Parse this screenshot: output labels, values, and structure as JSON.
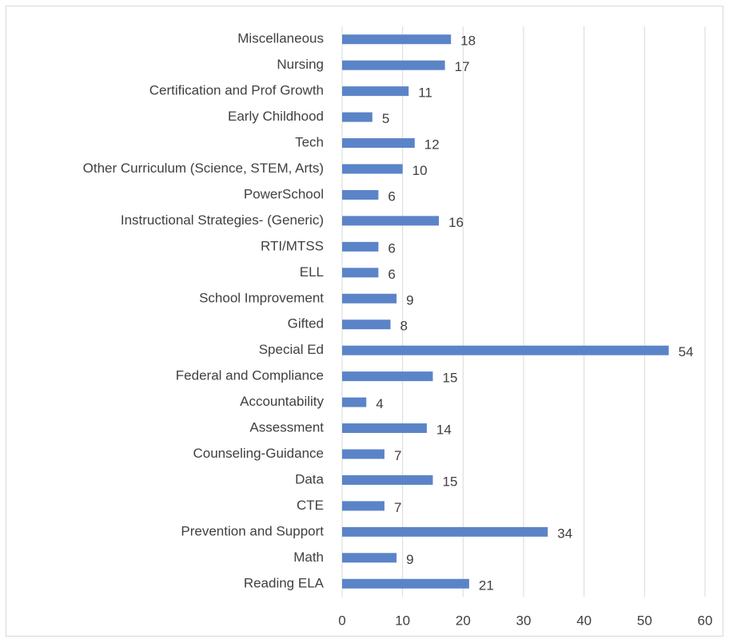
{
  "chart_data": {
    "type": "bar",
    "orientation": "horizontal",
    "categories": [
      "Miscellaneous",
      "Nursing",
      "Certification and Prof Growth",
      "Early Childhood",
      "Tech",
      "Other Curriculum (Science, STEM, Arts)",
      "PowerSchool",
      "Instructional Strategies- (Generic)",
      "RTI/MTSS",
      "ELL",
      "School Improvement",
      "Gifted",
      "Special Ed",
      "Federal and Compliance",
      "Accountability",
      "Assessment",
      "Counseling-Guidance",
      "Data",
      "CTE",
      "Prevention and Support",
      "Math",
      "Reading ELA"
    ],
    "values": [
      18,
      17,
      11,
      5,
      12,
      10,
      6,
      16,
      6,
      6,
      9,
      8,
      54,
      15,
      4,
      14,
      7,
      15,
      7,
      34,
      9,
      21
    ],
    "color": "#5b84c8",
    "xlim": [
      0,
      60
    ],
    "xticks": [
      0,
      10,
      20,
      30,
      40,
      50,
      60
    ],
    "grid": true
  }
}
